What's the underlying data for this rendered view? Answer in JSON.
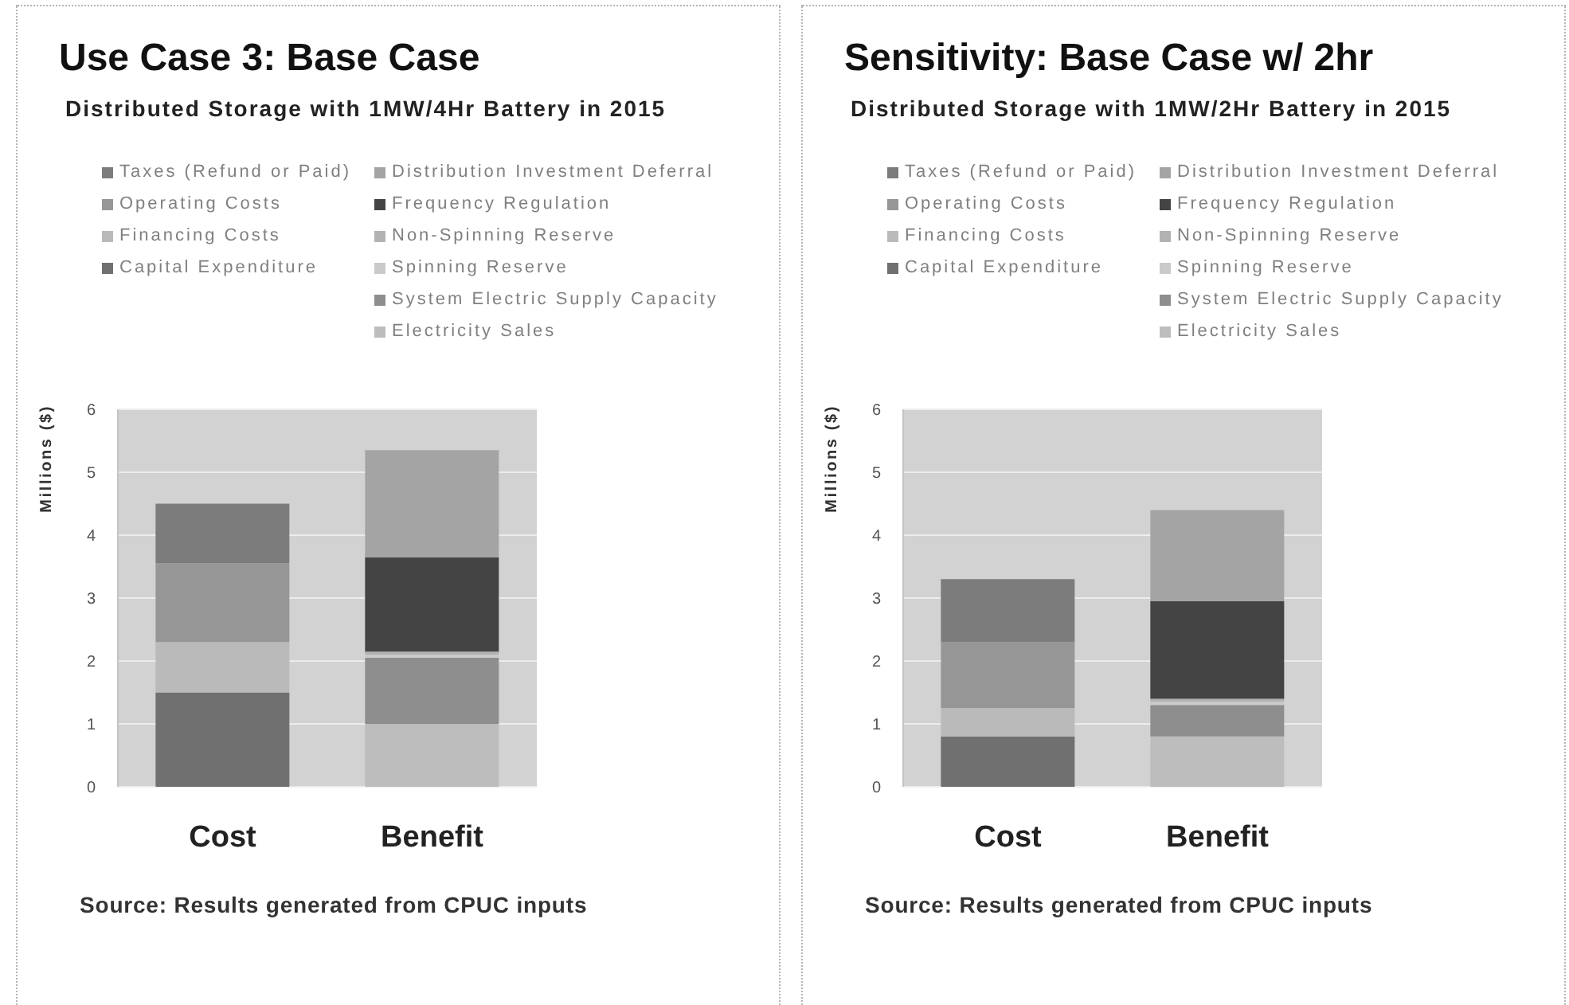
{
  "chart_data": [
    {
      "type": "bar",
      "title": "Use Case 3: Base Case",
      "subtitle": "Distributed Storage with 1MW/4Hr Battery in 2015",
      "ylabel": "Millions ($)",
      "categories": [
        "Cost",
        "Benefit"
      ],
      "stacked": true,
      "ylim": [
        0,
        6
      ],
      "yticks": [
        0,
        1,
        2,
        3,
        4,
        5,
        6
      ],
      "grid": "y",
      "legend": "top",
      "series": [
        {
          "name": "Capital Expenditure",
          "color": "#707070",
          "values": [
            1.5,
            null
          ]
        },
        {
          "name": "Financing Costs",
          "color": "#bababa",
          "values": [
            0.8,
            null
          ]
        },
        {
          "name": "Operating Costs",
          "color": "#969696",
          "values": [
            1.25,
            null
          ]
        },
        {
          "name": "Taxes (Refund or Paid)",
          "color": "#7c7c7c",
          "values": [
            0.95,
            null
          ]
        },
        {
          "name": "Electricity Sales",
          "color": "#bdbdbd",
          "values": [
            null,
            1.0
          ]
        },
        {
          "name": "System Electric Supply Capacity",
          "color": "#8e8e8e",
          "values": [
            null,
            1.05
          ]
        },
        {
          "name": "Spinning Reserve",
          "color": "#cacaca",
          "values": [
            null,
            0.05
          ]
        },
        {
          "name": "Non-Spinning Reserve",
          "color": "#b2b2b2",
          "values": [
            null,
            0.05
          ]
        },
        {
          "name": "Frequency Regulation",
          "color": "#444444",
          "values": [
            null,
            1.5
          ]
        },
        {
          "name": "Distribution Investment Deferral",
          "color": "#a4a4a4",
          "values": [
            null,
            1.7
          ]
        }
      ],
      "annotations": [
        "Source: Results generated from CPUC inputs"
      ]
    },
    {
      "type": "bar",
      "title": "Sensitivity: Base Case w/ 2hr",
      "subtitle": "Distributed Storage with 1MW/2Hr Battery in 2015",
      "ylabel": "Millions ($)",
      "categories": [
        "Cost",
        "Benefit"
      ],
      "stacked": true,
      "ylim": [
        0,
        6
      ],
      "yticks": [
        0,
        1,
        2,
        3,
        4,
        5,
        6
      ],
      "grid": "y",
      "legend": "top",
      "series": [
        {
          "name": "Capital Expenditure",
          "color": "#707070",
          "values": [
            0.8,
            null
          ]
        },
        {
          "name": "Financing Costs",
          "color": "#bababa",
          "values": [
            0.45,
            null
          ]
        },
        {
          "name": "Operating Costs",
          "color": "#969696",
          "values": [
            1.05,
            null
          ]
        },
        {
          "name": "Taxes (Refund or Paid)",
          "color": "#7c7c7c",
          "values": [
            1.0,
            null
          ]
        },
        {
          "name": "Electricity Sales",
          "color": "#bdbdbd",
          "values": [
            null,
            0.8
          ]
        },
        {
          "name": "System Electric Supply Capacity",
          "color": "#8e8e8e",
          "values": [
            null,
            0.5
          ]
        },
        {
          "name": "Spinning Reserve",
          "color": "#cacaca",
          "values": [
            null,
            0.05
          ]
        },
        {
          "name": "Non-Spinning Reserve",
          "color": "#b2b2b2",
          "values": [
            null,
            0.05
          ]
        },
        {
          "name": "Frequency Regulation",
          "color": "#444444",
          "values": [
            null,
            1.55
          ]
        },
        {
          "name": "Distribution Investment Deferral",
          "color": "#a4a4a4",
          "values": [
            null,
            1.45
          ]
        }
      ],
      "annotations": [
        "Source: Results generated from CPUC inputs"
      ]
    }
  ]
}
